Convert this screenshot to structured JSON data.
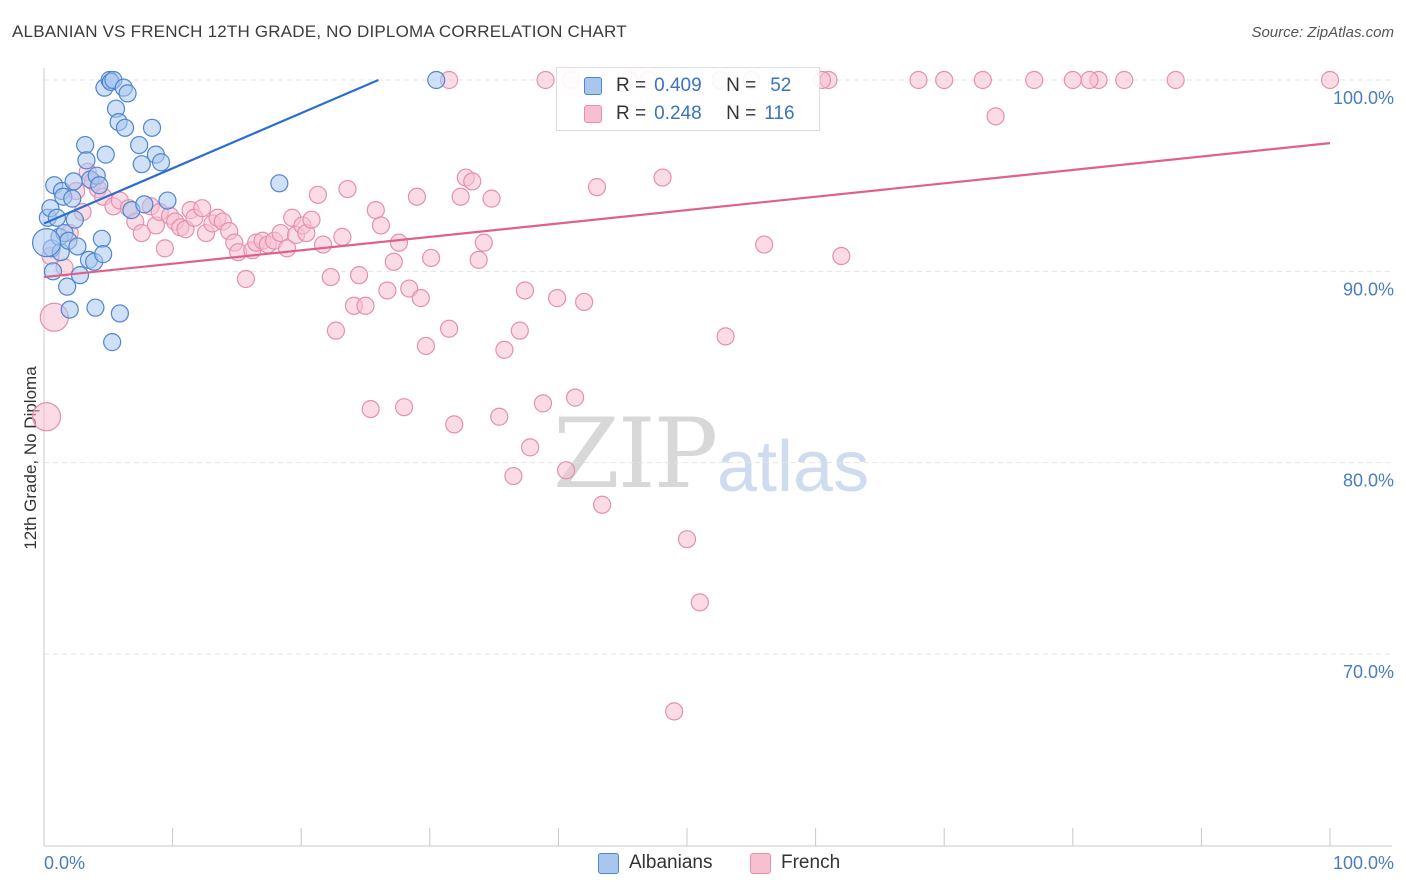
{
  "title": "ALBANIAN VS FRENCH 12TH GRADE, NO DIPLOMA CORRELATION CHART",
  "source": "Source: ZipAtlas.com",
  "watermark": {
    "zip": "ZIP",
    "atlas": "atlas"
  },
  "legend": {
    "r_label": "R =",
    "n_label": "N =",
    "albanians": {
      "r": "0.409",
      "n": "52"
    },
    "french": {
      "r": "0.248",
      "n": "116"
    }
  },
  "bottom_legend": {
    "albanians": "Albanians",
    "french": "French"
  },
  "colors": {
    "albanians_fill": "#a9c6ee",
    "albanians_stroke": "#4f86cf",
    "albanians_line": "#2a6fd0",
    "french_fill": "#f7c0d1",
    "french_stroke": "#e490ad",
    "french_line": "#e0608d",
    "tick_text": "#4a7cc4",
    "grid": "#e4e4e4"
  },
  "chart_data": {
    "type": "scatter",
    "title": "ALBANIAN VS FRENCH 12TH GRADE, NO DIPLOMA CORRELATION CHART",
    "xlabel": "",
    "ylabel": "12th Grade, No Diploma",
    "xlim": [
      0,
      100
    ],
    "ylim": [
      60.5,
      101.5
    ],
    "x_tick_labels": [
      "0.0%",
      "100.0%"
    ],
    "y_ticks": [
      70,
      80,
      90,
      100
    ],
    "y_tick_labels": [
      "70.0%",
      "80.0%",
      "90.0%",
      "100.0%"
    ],
    "grid": true,
    "series": [
      {
        "name": "Albanians",
        "R": 0.409,
        "N": 52,
        "trend": {
          "x": [
            0,
            26
          ],
          "y": [
            92.5,
            100
          ]
        },
        "points": [
          [
            0.3,
            92.8
          ],
          [
            0.5,
            93.3
          ],
          [
            0.6,
            91.2
          ],
          [
            0.7,
            90.0
          ],
          [
            0.8,
            94.5
          ],
          [
            1.0,
            92.8
          ],
          [
            1.2,
            91.8
          ],
          [
            1.3,
            91.0
          ],
          [
            1.4,
            94.2
          ],
          [
            1.5,
            93.9
          ],
          [
            1.6,
            92.0
          ],
          [
            1.8,
            89.2
          ],
          [
            1.9,
            91.6
          ],
          [
            2.0,
            88.0
          ],
          [
            2.2,
            93.8
          ],
          [
            2.4,
            92.7
          ],
          [
            2.6,
            91.3
          ],
          [
            2.8,
            89.8
          ],
          [
            3.2,
            96.6
          ],
          [
            3.3,
            95.8
          ],
          [
            3.5,
            90.6
          ],
          [
            3.6,
            94.8
          ],
          [
            3.9,
            90.5
          ],
          [
            4.0,
            88.1
          ],
          [
            4.1,
            95.0
          ],
          [
            4.3,
            94.5
          ],
          [
            4.5,
            91.7
          ],
          [
            4.6,
            90.9
          ],
          [
            4.7,
            99.6
          ],
          [
            4.8,
            96.1
          ],
          [
            5.1,
            100.0
          ],
          [
            5.2,
            99.9
          ],
          [
            5.3,
            86.3
          ],
          [
            5.4,
            100.0
          ],
          [
            5.6,
            98.5
          ],
          [
            5.8,
            97.8
          ],
          [
            5.9,
            87.8
          ],
          [
            6.2,
            99.6
          ],
          [
            6.3,
            97.5
          ],
          [
            6.5,
            99.3
          ],
          [
            6.8,
            93.2
          ],
          [
            7.4,
            96.6
          ],
          [
            7.6,
            95.6
          ],
          [
            7.8,
            93.5
          ],
          [
            8.4,
            97.5
          ],
          [
            8.7,
            96.1
          ],
          [
            9.1,
            95.7
          ],
          [
            9.6,
            93.7
          ],
          [
            18.3,
            94.6
          ],
          [
            30.5,
            100.0
          ],
          [
            0.2,
            91.5
          ],
          [
            2.3,
            94.7
          ]
        ]
      },
      {
        "name": "French",
        "R": 0.248,
        "N": 116,
        "trend": {
          "x": [
            0,
            100
          ],
          "y": [
            89.7,
            96.7
          ]
        },
        "points": [
          [
            0.2,
            82.4
          ],
          [
            0.5,
            90.8
          ],
          [
            0.8,
            87.6
          ],
          [
            1.6,
            90.2
          ],
          [
            2.0,
            92.0
          ],
          [
            2.5,
            94.2
          ],
          [
            3.0,
            93.1
          ],
          [
            3.4,
            95.2
          ],
          [
            3.8,
            94.7
          ],
          [
            4.2,
            94.3
          ],
          [
            4.6,
            93.9
          ],
          [
            5.4,
            93.4
          ],
          [
            5.9,
            93.7
          ],
          [
            6.6,
            93.3
          ],
          [
            7.1,
            92.6
          ],
          [
            7.6,
            92.0
          ],
          [
            8.3,
            93.4
          ],
          [
            8.7,
            92.4
          ],
          [
            9.0,
            93.1
          ],
          [
            9.4,
            91.2
          ],
          [
            9.8,
            92.9
          ],
          [
            10.2,
            92.6
          ],
          [
            10.6,
            92.3
          ],
          [
            11.0,
            92.2
          ],
          [
            11.4,
            93.2
          ],
          [
            11.7,
            92.8
          ],
          [
            12.3,
            93.3
          ],
          [
            12.6,
            92.0
          ],
          [
            13.1,
            92.5
          ],
          [
            13.5,
            92.8
          ],
          [
            13.9,
            92.6
          ],
          [
            14.4,
            92.1
          ],
          [
            14.8,
            91.5
          ],
          [
            15.1,
            91.0
          ],
          [
            15.7,
            89.6
          ],
          [
            16.2,
            91.1
          ],
          [
            16.5,
            91.5
          ],
          [
            17.0,
            91.6
          ],
          [
            17.4,
            91.4
          ],
          [
            17.9,
            91.6
          ],
          [
            18.4,
            92.0
          ],
          [
            18.9,
            91.2
          ],
          [
            19.3,
            92.8
          ],
          [
            19.6,
            91.9
          ],
          [
            20.1,
            92.4
          ],
          [
            20.4,
            92.0
          ],
          [
            20.8,
            92.7
          ],
          [
            21.3,
            94.0
          ],
          [
            21.7,
            91.4
          ],
          [
            22.3,
            89.7
          ],
          [
            22.7,
            86.9
          ],
          [
            23.2,
            91.8
          ],
          [
            23.6,
            94.3
          ],
          [
            24.1,
            88.2
          ],
          [
            24.5,
            89.8
          ],
          [
            25.0,
            88.2
          ],
          [
            25.4,
            82.8
          ],
          [
            25.8,
            93.2
          ],
          [
            26.2,
            92.4
          ],
          [
            26.7,
            89.0
          ],
          [
            27.2,
            90.5
          ],
          [
            27.6,
            91.5
          ],
          [
            28.0,
            82.9
          ],
          [
            28.4,
            89.1
          ],
          [
            29.0,
            93.9
          ],
          [
            29.3,
            88.6
          ],
          [
            29.7,
            86.1
          ],
          [
            30.1,
            90.7
          ],
          [
            31.5,
            87.0
          ],
          [
            31.9,
            82.0
          ],
          [
            32.4,
            93.9
          ],
          [
            32.8,
            94.9
          ],
          [
            33.3,
            94.7
          ],
          [
            33.8,
            90.6
          ],
          [
            34.2,
            91.5
          ],
          [
            34.8,
            93.8
          ],
          [
            35.4,
            82.4
          ],
          [
            35.8,
            85.9
          ],
          [
            36.5,
            79.3
          ],
          [
            37.0,
            86.9
          ],
          [
            37.4,
            89.0
          ],
          [
            37.8,
            80.8
          ],
          [
            38.8,
            83.1
          ],
          [
            39.9,
            88.6
          ],
          [
            40.6,
            79.6
          ],
          [
            41.3,
            83.4
          ],
          [
            42.0,
            88.4
          ],
          [
            43.0,
            94.4
          ],
          [
            43.4,
            77.8
          ],
          [
            48.1,
            94.9
          ],
          [
            49.0,
            67.0
          ],
          [
            50.0,
            76.0
          ],
          [
            51.0,
            72.7
          ],
          [
            52.6,
            100.0
          ],
          [
            53.0,
            86.6
          ],
          [
            56.0,
            91.4
          ],
          [
            61.0,
            100.0
          ],
          [
            62.0,
            90.8
          ],
          [
            68.0,
            100.0
          ],
          [
            70.0,
            100.0
          ],
          [
            73.0,
            100.0
          ],
          [
            74.0,
            98.1
          ],
          [
            77.0,
            100.0
          ],
          [
            80.0,
            100.0
          ],
          [
            82.0,
            100.0
          ],
          [
            84.0,
            100.0
          ],
          [
            88.0,
            100.0
          ],
          [
            100.0,
            100.0
          ],
          [
            55.0,
            100.0
          ],
          [
            60.5,
            100.0
          ],
          [
            81.3,
            100.0
          ],
          [
            31.5,
            100.0
          ],
          [
            39.0,
            100.0
          ],
          [
            41.0,
            100.0
          ],
          [
            45.5,
            100.0
          ],
          [
            47.0,
            100.0
          ]
        ]
      }
    ]
  }
}
